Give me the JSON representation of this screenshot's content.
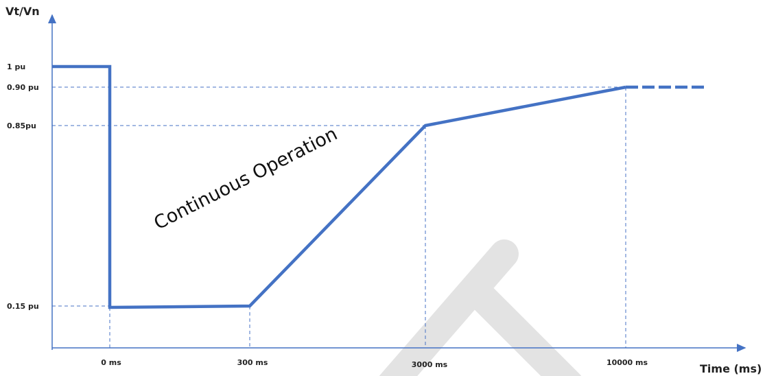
{
  "axis": {
    "y_title": "Vt/Vn",
    "x_title": "Time (ms)"
  },
  "y_levels": [
    "1 pu",
    "0.90 pu",
    "0.85pu",
    "0.15 pu"
  ],
  "x_points": [
    "0 ms",
    "300 ms",
    "3000 ms",
    "10000 ms"
  ],
  "region_label": "Continuous Operation"
}
